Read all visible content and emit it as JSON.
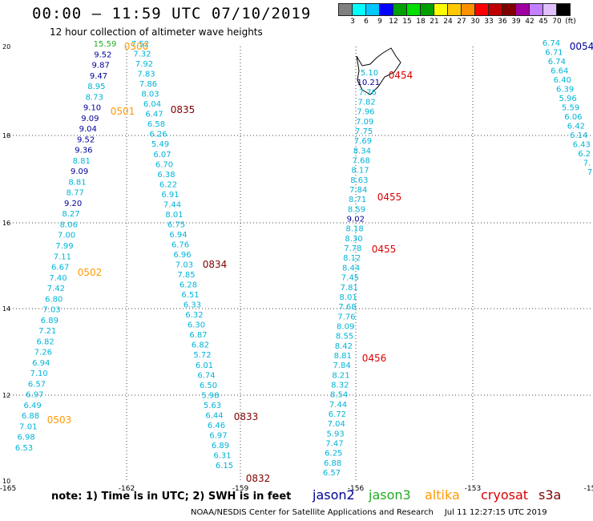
{
  "header": {
    "title": "00:00 – 11:59 UTC 07/10/2019",
    "subtitle": "12 hour collection of altimeter wave heights"
  },
  "colorbar": {
    "colors": [
      "#808080",
      "#00ffff",
      "#00c8ff",
      "#0000ff",
      "#00a000",
      "#00e000",
      "#00a000",
      "#ffff00",
      "#ffc800",
      "#ff9000",
      "#ff0000",
      "#c00000",
      "#800000",
      "#a000a0",
      "#c080ff",
      "#e0c0ff",
      "#000000"
    ],
    "labels": [
      "3",
      "6",
      "9",
      "12",
      "15",
      "18",
      "21",
      "24",
      "27",
      "30",
      "33",
      "36",
      "39",
      "42",
      "45",
      "70",
      "(ft)"
    ]
  },
  "axes": {
    "x_ticks": [
      "-165",
      "-162",
      "-159",
      "-156",
      "-153",
      "-15"
    ],
    "y_ticks": [
      "20",
      "18",
      "16",
      "14",
      "12",
      "10"
    ]
  },
  "palette": {
    "cyan": "#00b4d8",
    "navy": "#000099",
    "green": "#22aa22",
    "orange": "#ff9900",
    "red": "#dd0000",
    "maroon": "#800000"
  },
  "tracks": [
    {
      "name": "track-a",
      "color": "cyan",
      "values": [
        "15.59",
        "9.52",
        "9.87",
        "9.47",
        "8.95",
        "8.73",
        "9.10",
        "9.09",
        "9.04",
        "9.52",
        "9.36",
        "8.81",
        "9.09",
        "8.81",
        "8.77",
        "9.20",
        "8.27",
        "8.06",
        "7.00",
        "7.99",
        "7.11",
        "6.67",
        "7.40",
        "7.42",
        "6.80",
        "7.03",
        "6.89",
        "7.21",
        "6.82",
        "7.26",
        "6.94",
        "7.10",
        "6.57",
        "6.97",
        "6.49",
        "6.88",
        "7.01",
        "6.98",
        "6.53"
      ]
    },
    {
      "name": "track-b",
      "color": "cyan",
      "values": [
        "7.52",
        "7.32",
        "7.92",
        "7.83",
        "7.86",
        "8.03",
        "6.04",
        "6.47",
        "6.58",
        "6.26",
        "5.49",
        "6.07",
        "6.70",
        "6.38",
        "6.22",
        "6.91",
        "7.44",
        "8.01",
        "6.75",
        "6.94",
        "6.76",
        "6.96",
        "7.03",
        "7.85",
        "6.28",
        "6.51",
        "6.33",
        "6.32",
        "6.30",
        "6.87",
        "6.82",
        "5.72",
        "6.01",
        "6.74",
        "6.50",
        "5.98",
        "5.63",
        "6.44",
        "6.46",
        "6.97",
        "6.89",
        "6.31",
        "6.15"
      ]
    },
    {
      "name": "track-c",
      "color": "cyan",
      "values": [
        "5.10",
        "10.21",
        "7.76",
        "7.82",
        "7.96",
        "7.09",
        "7.75",
        "7.69",
        "8.34",
        "7.68",
        "8.17",
        "8.63",
        "7.84",
        "8.71",
        "8.59",
        "9.02",
        "8.18",
        "8.30",
        "7.78",
        "8.12",
        "8.44",
        "7.45",
        "7.81",
        "8.01",
        "7.68",
        "7.76",
        "8.09",
        "8.55",
        "8.42",
        "8.81",
        "7.84",
        "8.21",
        "8.32",
        "8.54",
        "7.44",
        "6.72",
        "7.04",
        "5.93",
        "7.47",
        "6.25",
        "6.88",
        "6.57"
      ]
    },
    {
      "name": "track-d",
      "color": "cyan",
      "values": [
        "6.74",
        "6.71",
        "6.74",
        "6.64",
        "6.40",
        "6.39",
        "5.96",
        "5.59",
        "6.06",
        "6.42",
        "6.14",
        "6.43",
        "6.2",
        "7.",
        "7"
      ]
    }
  ],
  "pass_labels": [
    {
      "text": "0500",
      "color": "orange"
    },
    {
      "text": "0501",
      "color": "orange"
    },
    {
      "text": "0502",
      "color": "orange"
    },
    {
      "text": "0503",
      "color": "orange"
    },
    {
      "text": "0835",
      "color": "maroon"
    },
    {
      "text": "0834",
      "color": "maroon"
    },
    {
      "text": "0833",
      "color": "maroon"
    },
    {
      "text": "0832",
      "color": "maroon"
    },
    {
      "text": "0454",
      "color": "red"
    },
    {
      "text": "0455",
      "color": "red"
    },
    {
      "text": "0455",
      "color": "red"
    },
    {
      "text": "0456",
      "color": "red"
    },
    {
      "text": "0054",
      "color": "navy"
    }
  ],
  "note": "note: 1) Time is in UTC; 2) SWH is in feet",
  "satellites": [
    {
      "name": "jason2",
      "color": "navy"
    },
    {
      "name": "jason3",
      "color": "green"
    },
    {
      "name": "altika",
      "color": "orange"
    },
    {
      "name": "cryosat",
      "color": "red"
    },
    {
      "name": "s3a",
      "color": "maroon"
    }
  ],
  "footer": {
    "credit": "NOAA/NESDIS Center for Satellite Applications and Research",
    "timestamp": "Jul 11 12:27:15 UTC 2019"
  }
}
